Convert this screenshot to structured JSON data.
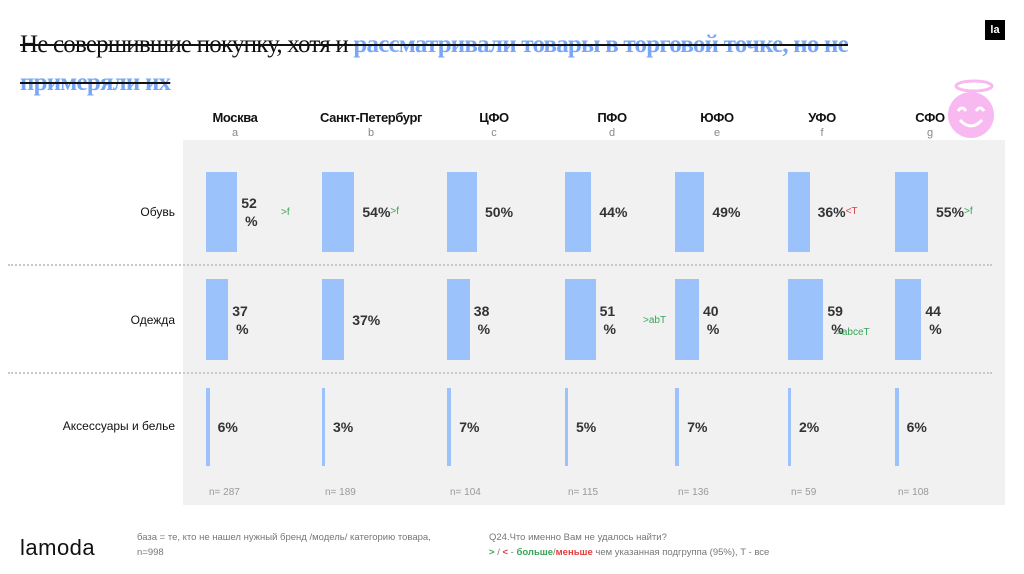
{
  "title": {
    "part1": "Не совершившие покупку, хотя и ",
    "part2": "рассматривали товары в торговой точке, но не примеряли их"
  },
  "logo_mark": "la",
  "brand": "lamoda",
  "colors": {
    "bar": "#9cc2fc",
    "higher": "#3aa35a",
    "lower": "#e53b3b",
    "title_highlight": "#7aa7f5"
  },
  "chart_data": {
    "type": "bar",
    "columns": [
      {
        "name": "Москва",
        "letter": "a",
        "n": "n= 287"
      },
      {
        "name": "Санкт-Петербург",
        "letter": "b",
        "n": "n= 189"
      },
      {
        "name": "ЦФО",
        "letter": "c",
        "n": "n= 104"
      },
      {
        "name": "ПФО",
        "letter": "d",
        "n": "n= 115"
      },
      {
        "name": "ЮФО",
        "letter": "e",
        "n": "n= 136"
      },
      {
        "name": "УФО",
        "letter": "f",
        "n": "n= 59"
      },
      {
        "name": "СФО",
        "letter": "g",
        "n": "n= 108"
      }
    ],
    "rows": [
      {
        "label": "Обувь",
        "values": [
          52,
          54,
          50,
          44,
          49,
          36,
          55
        ],
        "tags": [
          ">f",
          ">f",
          "",
          "",
          "",
          "<T",
          ">f"
        ]
      },
      {
        "label": "Одежда",
        "values": [
          37,
          37,
          38,
          51,
          40,
          59,
          44
        ],
        "tags": [
          "",
          "",
          "",
          ">abT",
          "",
          ">abceT",
          ""
        ]
      },
      {
        "label": "Аксессуары и белье",
        "values": [
          6,
          3,
          7,
          5,
          7,
          2,
          6
        ],
        "tags": [
          "",
          "",
          "",
          "",
          "",
          "",
          ""
        ]
      }
    ],
    "unit": "%"
  },
  "footer": {
    "base": "база = те, кто не нашел нужный бренд /модель/ категорию товара,",
    "base_n": "n=998",
    "question": "Q24.Что именно Вам не удалось найти?",
    "legend_sym1": ">",
    "legend_sep": " / ",
    "legend_sym2": "<",
    "legend_dash": " - ",
    "legend_more": "больше",
    "legend_slash": "/",
    "legend_less": "меньше",
    "legend_rest": " чем указанная подгруппа (95%), T - все"
  }
}
